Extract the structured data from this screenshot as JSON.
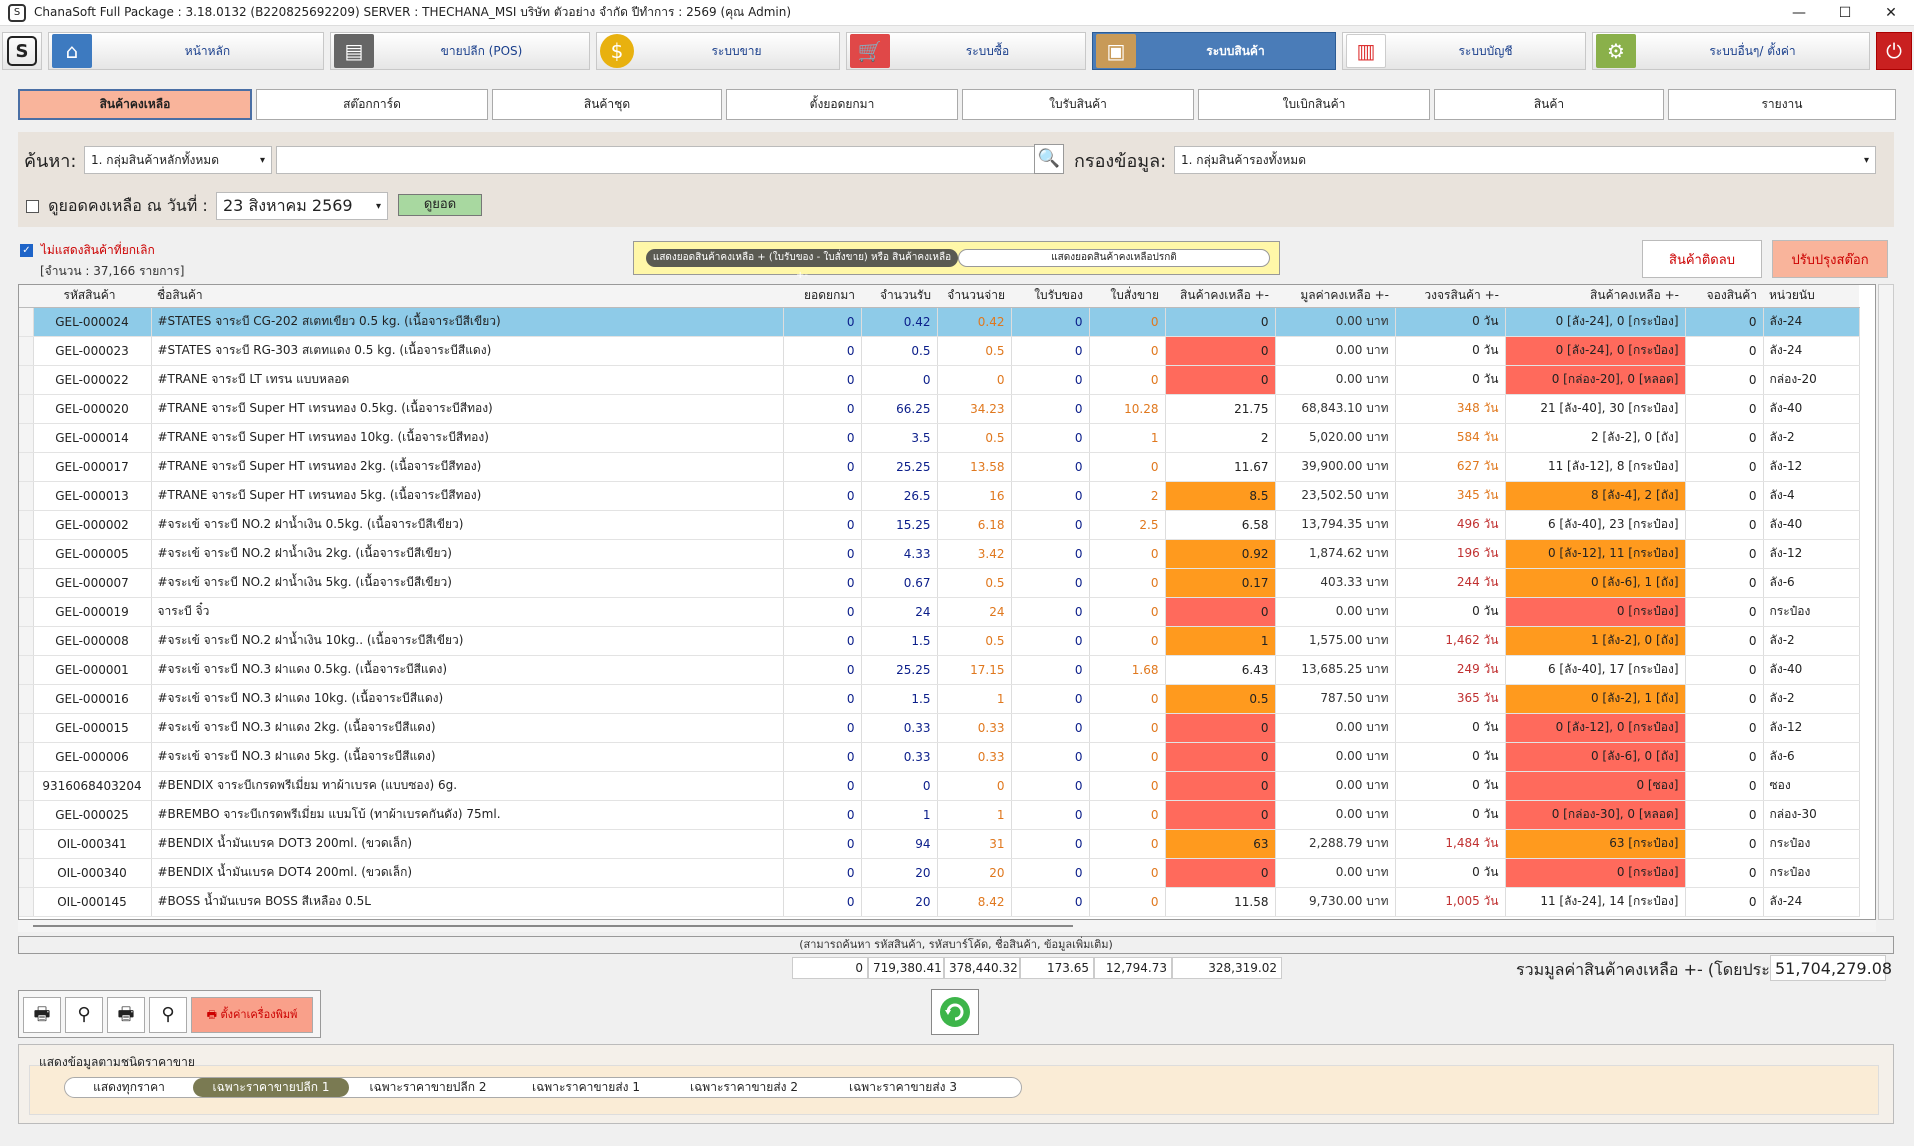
{
  "window": {
    "title": "ChanaSoft Full Package : 3.18.0132 (B220825692209) SERVER : THECHANA_MSI บริษัท ตัวอย่าง จำกัด ปีทำการ : 2569 (คุณ Admin)"
  },
  "modules": [
    {
      "label": "หน้าหลัก",
      "icon": "home-icon"
    },
    {
      "label": "ขายปลีก (POS)",
      "icon": "pos-terminal-icon"
    },
    {
      "label": "ระบบขาย",
      "icon": "coin-icon"
    },
    {
      "label": "ระบบซื้อ",
      "icon": "cart-icon"
    },
    {
      "label": "ระบบสินค้า",
      "icon": "box-icon"
    },
    {
      "label": "ระบบบัญชี",
      "icon": "report-icon"
    },
    {
      "label": "ระบบอื่นๆ/ ตั้งค่า",
      "icon": "gear-icon"
    }
  ],
  "tabs": [
    "สินค้าคงเหลือ",
    "สต๊อกการ์ด",
    "สินค้าชุด",
    "ตั้งยอดยกมา",
    "ใบรับสินค้า",
    "ใบเบิกสินค้า",
    "สินค้า",
    "รายงาน"
  ],
  "search": {
    "label": "ค้นหา:",
    "group_value": "1. กลุ่มสินค้าหลักทั้งหมด",
    "text_value": "",
    "filter_label": "กรองข้อมูล:",
    "filter_value": "1. กลุ่มสินค้ารองทั้งหมด",
    "date_check_label": "ดูยอดคงเหลือ ณ วันที่ :",
    "date_value": "23   สิงหาคม    2569",
    "view_button": "ดูยอด"
  },
  "hide_cancelled_label": "ไม่แสดงสินค้าที่ยกเลิก",
  "record_count": "[จำนวน : 37,166 รายการ]",
  "toggle": {
    "left": "แสดงยอดสินค้าคงเหลือ + (ใบรับของ - ใบสั่งขาย)  หรือ  สินค้าคงเหลือ +-",
    "right": "แสดงยอดสินค้าคงเหลือปรกติ"
  },
  "buttons": {
    "negative_stock": "สินค้าติดลบ",
    "adjust_stock": "ปรับปรุงสต๊อก"
  },
  "columns": [
    "รหัสสินค้า",
    "ชื่อสินค้า",
    "ยอดยกมา",
    "จำนวนรับ",
    "จำนวนจ่าย",
    "ใบรับของ",
    "ใบสั่งขาย",
    "สินค้าคงเหลือ +-",
    "มูลค่าคงเหลือ +-",
    "วงจรสินค้า +-",
    "สินค้าคงเหลือ +-",
    "จองสินค้า",
    "หน่วยนับ"
  ],
  "rows": [
    [
      "GEL-000024",
      "#STATES จาระบี CG-202 สเตทเขียว 0.5 kg. (เนื้อจาระบีสีเขียว)",
      "0",
      "0.42",
      "0.42",
      "0",
      "0",
      "0",
      "0.00 บาท",
      "0 วัน",
      "0 [ลัง-24], 0 [กระป๋อง]",
      "0",
      "ลัง-24"
    ],
    [
      "GEL-000023",
      "#STATES จาระบี RG-303 สเตทแดง 0.5 kg. (เนื้อจาระบีสีแดง)",
      "0",
      "0.5",
      "0.5",
      "0",
      "0",
      "0",
      "0.00 บาท",
      "0 วัน",
      "0 [ลัง-24], 0 [กระป๋อง]",
      "0",
      "ลัง-24"
    ],
    [
      "GEL-000022",
      "#TRANE จาระบี LT เทรน แบบหลอด",
      "0",
      "0",
      "0",
      "0",
      "0",
      "0",
      "0.00 บาท",
      "0 วัน",
      "0 [กล่อง-20], 0 [หลอด]",
      "0",
      "กล่อง-20"
    ],
    [
      "GEL-000020",
      "#TRANE จาระบี Super HT เทรนทอง 0.5kg. (เนื้อจาระบีสีทอง)",
      "0",
      "66.25",
      "34.23",
      "0",
      "10.28",
      "21.75",
      "68,843.10 บาท",
      "348 วัน",
      "21 [ลัง-40], 30 [กระป๋อง]",
      "0",
      "ลัง-40"
    ],
    [
      "GEL-000014",
      "#TRANE จาระบี Super HT เทรนทอง 10kg. (เนื้อจาระบีสีทอง)",
      "0",
      "3.5",
      "0.5",
      "0",
      "1",
      "2",
      "5,020.00 บาท",
      "584 วัน",
      "2 [ลัง-2], 0 [ถัง]",
      "0",
      "ลัง-2"
    ],
    [
      "GEL-000017",
      "#TRANE จาระบี Super HT เทรนทอง 2kg. (เนื้อจาระบีสีทอง)",
      "0",
      "25.25",
      "13.58",
      "0",
      "0",
      "11.67",
      "39,900.00 บาท",
      "627 วัน",
      "11 [ลัง-12], 8 [กระป๋อง]",
      "0",
      "ลัง-12"
    ],
    [
      "GEL-000013",
      "#TRANE จาระบี Super HT เทรนทอง 5kg. (เนื้อจาระบีสีทอง)",
      "0",
      "26.5",
      "16",
      "0",
      "2",
      "8.5",
      "23,502.50 บาท",
      "345 วัน",
      "8 [ลัง-4], 2 [ถัง]",
      "0",
      "ลัง-4"
    ],
    [
      "GEL-000002",
      "#จระเข้ จาระบี NO.2 ฝาน้ำเงิน 0.5kg. (เนื้อจาระบีสีเขียว)",
      "0",
      "15.25",
      "6.18",
      "0",
      "2.5",
      "6.58",
      "13,794.35 บาท",
      "496 วัน",
      "6 [ลัง-40], 23 [กระป๋อง]",
      "0",
      "ลัง-40"
    ],
    [
      "GEL-000005",
      "#จระเข้ จาระบี NO.2 ฝาน้ำเงิน 2kg. (เนื้อจาระบีสีเขียว)",
      "0",
      "4.33",
      "3.42",
      "0",
      "0",
      "0.92",
      "1,874.62 บาท",
      "196 วัน",
      "0 [ลัง-12], 11 [กระป๋อง]",
      "0",
      "ลัง-12"
    ],
    [
      "GEL-000007",
      "#จระเข้ จาระบี NO.2 ฝาน้ำเงิน 5kg. (เนื้อจาระบีสีเขียว)",
      "0",
      "0.67",
      "0.5",
      "0",
      "0",
      "0.17",
      "403.33 บาท",
      "244 วัน",
      "0 [ลัง-6], 1 [ถัง]",
      "0",
      "ลัง-6"
    ],
    [
      "GEL-000019",
      "จาระบี จิ๋ว",
      "0",
      "24",
      "24",
      "0",
      "0",
      "0",
      "0.00 บาท",
      "0 วัน",
      "0 [กระป๋อง]",
      "0",
      "กระป๋อง"
    ],
    [
      "GEL-000008",
      "#จระเข้ จาระบี NO.2 ฝาน้ำเงิน 10kg.. (เนื้อจาระบีสีเขียว)",
      "0",
      "1.5",
      "0.5",
      "0",
      "0",
      "1",
      "1,575.00 บาท",
      "1,462 วัน",
      "1 [ลัง-2], 0 [ถัง]",
      "0",
      "ลัง-2"
    ],
    [
      "GEL-000001",
      "#จระเข้ จาระบี NO.3 ฝาแดง 0.5kg. (เนื้อจาระบีสีแดง)",
      "0",
      "25.25",
      "17.15",
      "0",
      "1.68",
      "6.43",
      "13,685.25 บาท",
      "249 วัน",
      "6 [ลัง-40], 17 [กระป๋อง]",
      "0",
      "ลัง-40"
    ],
    [
      "GEL-000016",
      "#จระเข้ จาระบี NO.3 ฝาแดง 10kg. (เนื้อจาระบีสีแดง)",
      "0",
      "1.5",
      "1",
      "0",
      "0",
      "0.5",
      "787.50 บาท",
      "365 วัน",
      "0 [ลัง-2], 1 [ถัง]",
      "0",
      "ลัง-2"
    ],
    [
      "GEL-000015",
      "#จระเข้ จาระบี NO.3 ฝาแดง 2kg. (เนื้อจาระบีสีแดง)",
      "0",
      "0.33",
      "0.33",
      "0",
      "0",
      "0",
      "0.00 บาท",
      "0 วัน",
      "0 [ลัง-12], 0 [กระป๋อง]",
      "0",
      "ลัง-12"
    ],
    [
      "GEL-000006",
      "#จระเข้ จาระบี NO.3 ฝาแดง 5kg. (เนื้อจาระบีสีแดง)",
      "0",
      "0.33",
      "0.33",
      "0",
      "0",
      "0",
      "0.00 บาท",
      "0 วัน",
      "0 [ลัง-6], 0 [ถัง]",
      "0",
      "ลัง-6"
    ],
    [
      "9316068403204",
      "#BENDIX จาระบีเกรดพรีเมี่ยม ทาผ้าเบรค (แบบซอง) 6g.",
      "0",
      "0",
      "0",
      "0",
      "0",
      "0",
      "0.00 บาท",
      "0 วัน",
      "0 [ซอง]",
      "0",
      "ซอง"
    ],
    [
      "GEL-000025",
      "#BREMBO จาระบีเกรดพรีเมี่ยม แบมโบ้ (ทาผ้าเบรคกันดัง) 75ml.",
      "0",
      "1",
      "1",
      "0",
      "0",
      "0",
      "0.00 บาท",
      "0 วัน",
      "0 [กล่อง-30], 0 [หลอด]",
      "0",
      "กล่อง-30"
    ],
    [
      "OIL-000341",
      "#BENDIX น้ำมันเบรค DOT3 200ml. (ขวดเล็ก)",
      "0",
      "94",
      "31",
      "0",
      "0",
      "63",
      "2,288.79 บาท",
      "1,484 วัน",
      "63 [กระป๋อง]",
      "0",
      "กระป๋อง"
    ],
    [
      "OIL-000340",
      "#BENDIX น้ำมันเบรค DOT4 200ml. (ขวดเล็ก)",
      "0",
      "20",
      "20",
      "0",
      "0",
      "0",
      "0.00 บาท",
      "0 วัน",
      "0 [กระป๋อง]",
      "0",
      "กระป๋อง"
    ],
    [
      "OIL-000145",
      "#BOSS น้ำมันเบรค BOSS สีเหลือง 0.5L",
      "0",
      "20",
      "8.42",
      "0",
      "0",
      "11.58",
      "9,730.00 บาท",
      "1,005 วัน",
      "11 [ลัง-24], 14 [กระป๋อง]",
      "0",
      "ลัง-24"
    ]
  ],
  "row_highlight": [
    "red",
    "red",
    "red",
    "",
    "",
    "",
    "org",
    "",
    "org",
    "org",
    "red",
    "org",
    "",
    "org",
    "red",
    "red",
    "red",
    "red",
    "org",
    "red",
    ""
  ],
  "footer_hint": "(สามารถค้นหา รหัสสินค้า, รหัสบาร์โค้ด, ชื่อสินค้า, ข้อมูลเพิ่มเติม)",
  "totals": [
    "0",
    "719,380.41",
    "378,440.32",
    "173.65",
    "12,794.73",
    "328,319.02"
  ],
  "grand_label": "รวมมูลค่าสินค้าคงเหลือ +- (โดยประมาณ):",
  "grand_value": "51,704,279.08",
  "print": {
    "setup_label": "ตั้งค่าเครื่องพิมพ์"
  },
  "price_panel": {
    "title": "แสดงข้อมูลตามชนิดราคาขาย",
    "options": [
      "แสดงทุกราคา",
      "เฉพาะราคาขายปลีก 1",
      "เฉพาะราคาขายปลีก 2",
      "เฉพาะราคาขายส่ง 1",
      "เฉพาะราคาขายส่ง 2",
      "เฉพาะราคาขายส่ง 3"
    ],
    "selected": 1
  },
  "colors": {
    "accent": "#4a7cb8",
    "red": "#ff6a5c",
    "orange": "#ff9a1e",
    "selected_row": "#8ecbe8"
  }
}
